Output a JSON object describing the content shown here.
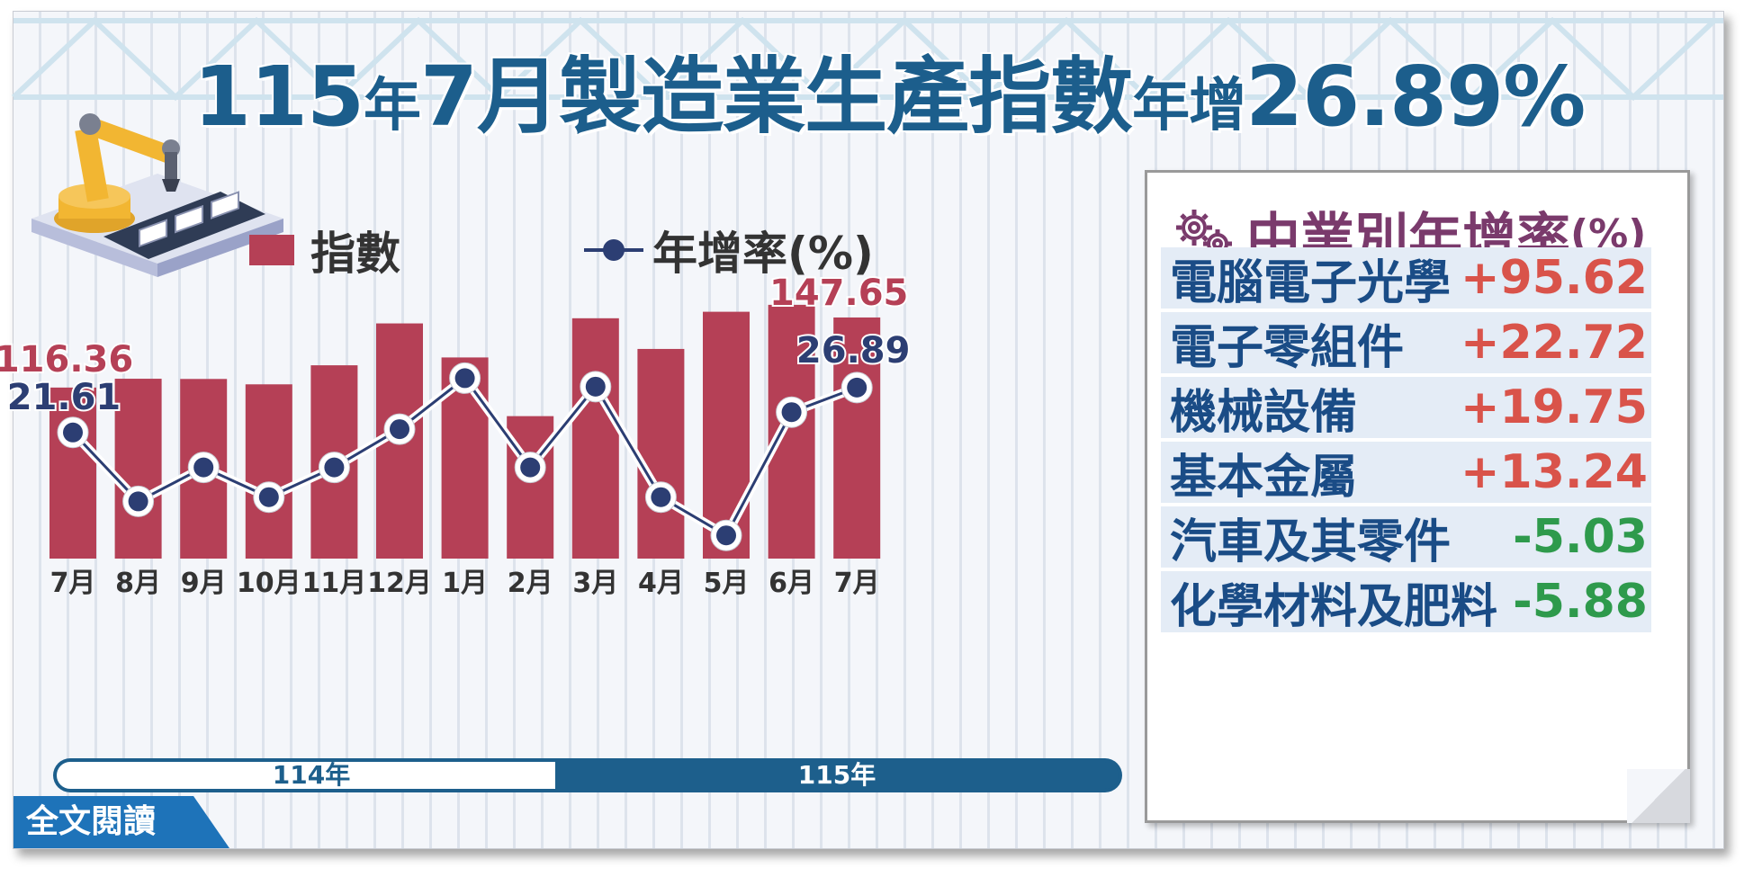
{
  "title": {
    "part1": "115",
    "part2": "年",
    "part3": "7月",
    "part4": "製造業生產指數",
    "part5": "年增",
    "part6": "26.89%"
  },
  "legend": {
    "bars_label": "指數",
    "line_label": "年增率(%)"
  },
  "colors": {
    "bar": "#b54056",
    "line": "#2c3e73",
    "title": "#1c5e8c",
    "positive": "#d9534a",
    "negative": "#2e9a4c",
    "panel_title": "#7a3a6c"
  },
  "chart_data": {
    "type": "bar",
    "categories": [
      "7月",
      "8月",
      "9月",
      "10月",
      "11月",
      "12月",
      "1月",
      "2月",
      "3月",
      "4月",
      "5月",
      "6月",
      "7月"
    ],
    "series": [
      {
        "name": "指數",
        "type": "bar",
        "values": [
          116.36,
          120.3,
          120.2,
          117.8,
          126.3,
          145.0,
          129.8,
          103.6,
          147.3,
          133.6,
          150.2,
          153.3,
          147.65
        ]
      },
      {
        "name": "年增率(%)",
        "type": "line",
        "values": [
          21.61,
          13.5,
          17.5,
          14.0,
          17.5,
          22.0,
          28.0,
          17.5,
          27.0,
          14.0,
          9.5,
          24.0,
          26.89
        ]
      }
    ],
    "bar_labels": {
      "first": "116.36",
      "last": "147.65"
    },
    "line_labels": {
      "first": "21.61",
      "last": "26.89"
    },
    "groups": [
      {
        "label": "114年",
        "categories": [
          "7月",
          "8月",
          "9月",
          "10月",
          "11月",
          "12月"
        ]
      },
      {
        "label": "115年",
        "categories": [
          "1月",
          "2月",
          "3月",
          "4月",
          "5月",
          "6月",
          "7月"
        ]
      }
    ],
    "xlabel": "",
    "ylabel": "",
    "grid": false,
    "legend_position": "top"
  },
  "panel": {
    "title": "中業別年增率",
    "title_unit": "(%)",
    "rows": [
      {
        "name": "電腦電子光學",
        "value": "+95.62",
        "sign": "pos"
      },
      {
        "name": "電子零組件",
        "value": "+22.72",
        "sign": "pos"
      },
      {
        "name": "機械設備",
        "value": "+19.75",
        "sign": "pos"
      },
      {
        "name": "基本金屬",
        "value": "+13.24",
        "sign": "pos"
      },
      {
        "name": "汽車及其零件",
        "value": "-5.03",
        "sign": "neg"
      },
      {
        "name": "化學材料及肥料",
        "value": "-5.88",
        "sign": "neg"
      }
    ]
  },
  "read_more": "全文閱讀",
  "icons": {
    "robot": "robot-arm-icon",
    "gear": "gear-icon"
  }
}
